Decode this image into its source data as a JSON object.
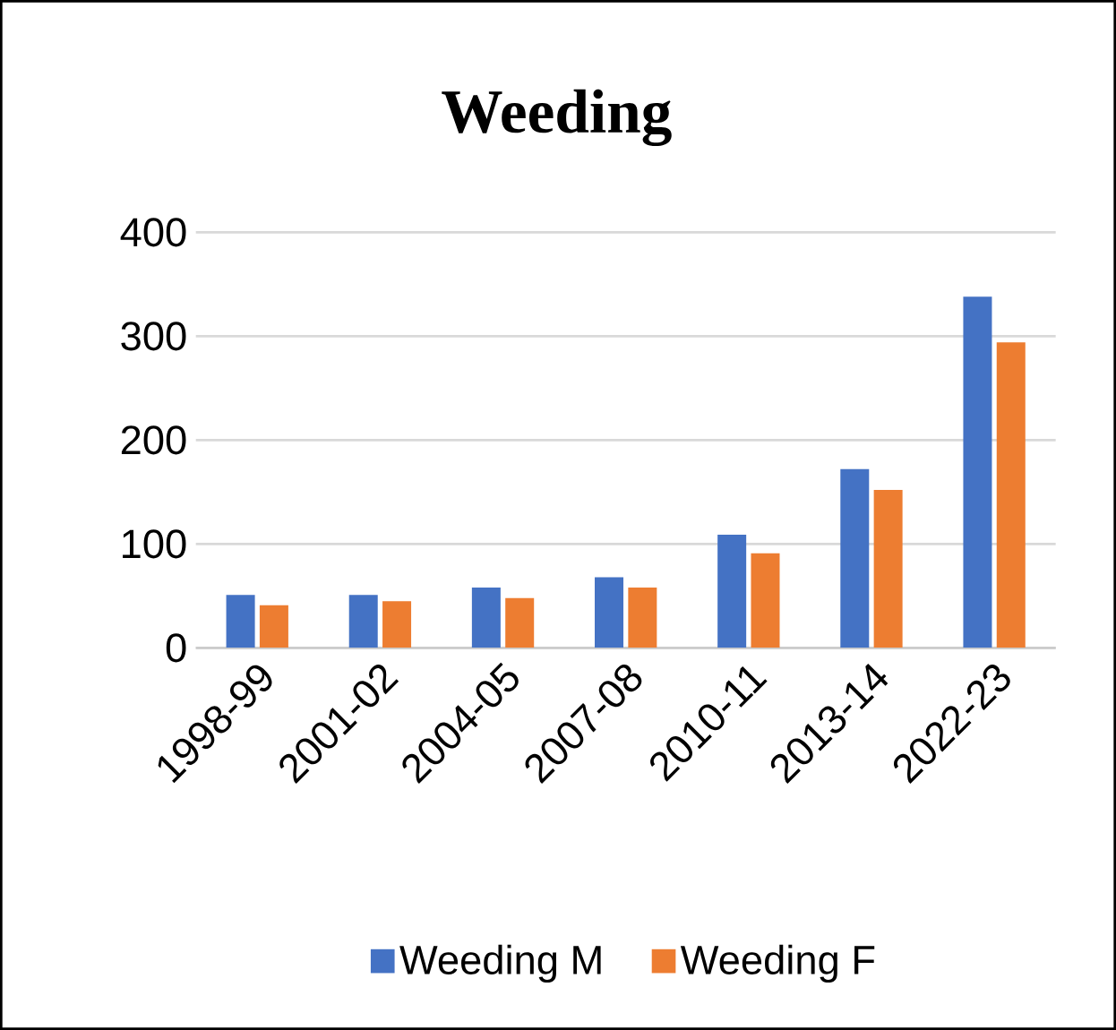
{
  "chart_data": {
    "type": "bar",
    "title": "Weeding",
    "categories": [
      "1998-99",
      "2001-02",
      "2004-05",
      "2007-08",
      "2010-11",
      "2013-14",
      "2022-23"
    ],
    "series": [
      {
        "name": "Weeding M",
        "color": "#4472c4",
        "values": [
          51,
          51,
          58,
          68,
          109,
          172,
          338
        ]
      },
      {
        "name": "Weeding F",
        "color": "#ed7d31",
        "values": [
          41,
          45,
          48,
          58,
          91,
          152,
          294
        ]
      }
    ],
    "ylim": [
      0,
      400
    ],
    "yticks": [
      0,
      100,
      200,
      300,
      400
    ],
    "grid": "y",
    "legend": "bottom"
  }
}
